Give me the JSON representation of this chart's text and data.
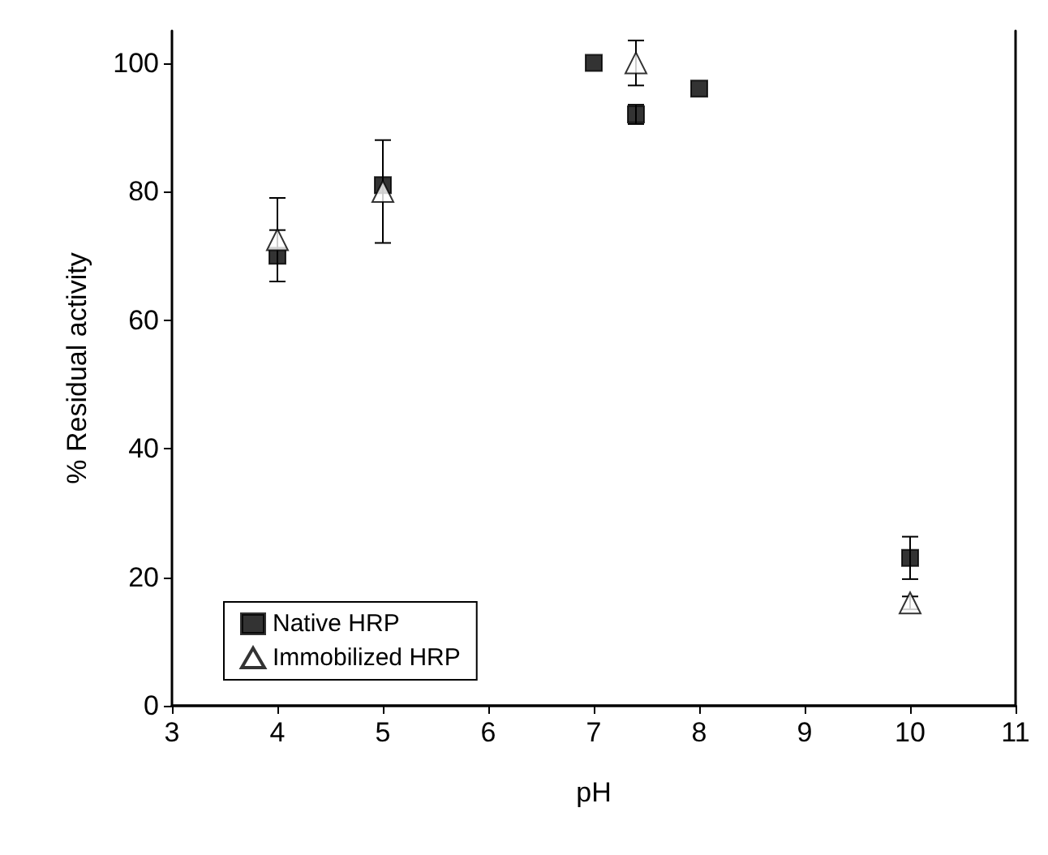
{
  "chart_data": {
    "type": "scatter",
    "xlabel": "pH",
    "ylabel": "% Residual activity",
    "xlim": [
      3,
      11
    ],
    "xticks": [
      3,
      4,
      5,
      6,
      7,
      8,
      9,
      10,
      11
    ],
    "ylim": [
      0,
      105
    ],
    "yticks": [
      0,
      20,
      40,
      60,
      80,
      100
    ],
    "legend": "bottom left",
    "grid": false,
    "series": [
      {
        "name": "Native HRP",
        "color": "#000000",
        "marker": "square",
        "x": [
          4,
          5,
          7,
          7.4,
          8,
          10
        ],
        "values": [
          70,
          81,
          100,
          92,
          96,
          23
        ],
        "errors": [
          4,
          null,
          null,
          1.5,
          null,
          3.3
        ]
      },
      {
        "name": "Immobilized HRP",
        "color": "#000000",
        "marker": "triangle",
        "x": [
          4,
          5,
          7.4,
          10
        ],
        "values": [
          72.5,
          80,
          100,
          16
        ],
        "errors": [
          6.5,
          8,
          3.5,
          1
        ]
      }
    ]
  }
}
